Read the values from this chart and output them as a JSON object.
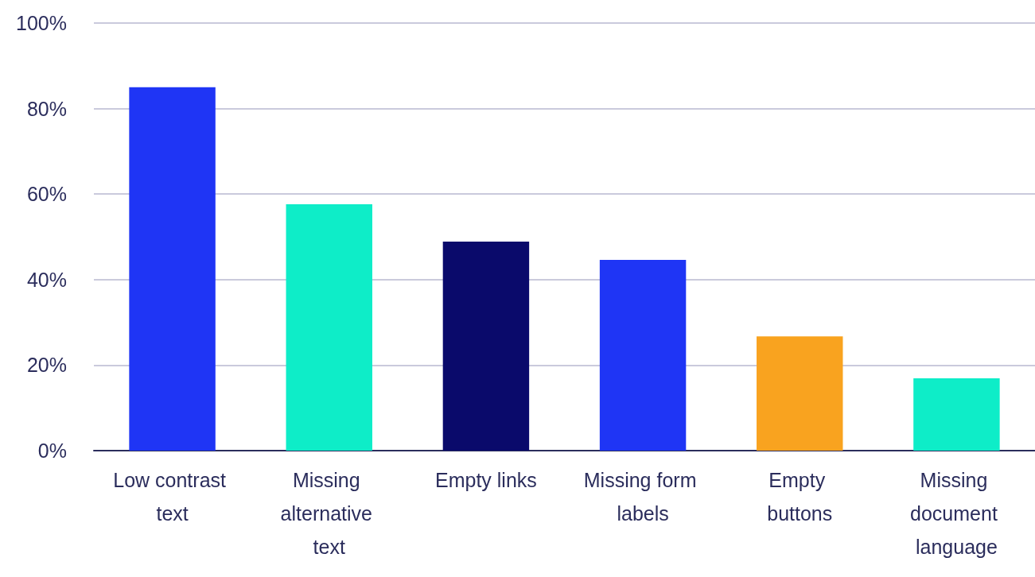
{
  "chart_data": {
    "type": "bar",
    "categories": [
      "Low contrast text",
      "Missing alternative text",
      "Empty links",
      "Missing form labels",
      "Empty buttons",
      "Missing document language"
    ],
    "values": [
      85,
      57.6,
      48.9,
      44.6,
      26.7,
      16.9
    ],
    "colors": [
      "#1f35f5",
      "#0eedc8",
      "#0a0a6b",
      "#1f35f5",
      "#f9a31f",
      "#0eedc8"
    ],
    "ylim": [
      0,
      100
    ],
    "yticks": [
      {
        "value": 0,
        "label": "0%"
      },
      {
        "value": 20,
        "label": "20%"
      },
      {
        "value": 40,
        "label": "40%"
      },
      {
        "value": 60,
        "label": "60%"
      },
      {
        "value": 80,
        "label": "80%"
      },
      {
        "value": 100,
        "label": "100%"
      }
    ],
    "grid": "y"
  }
}
